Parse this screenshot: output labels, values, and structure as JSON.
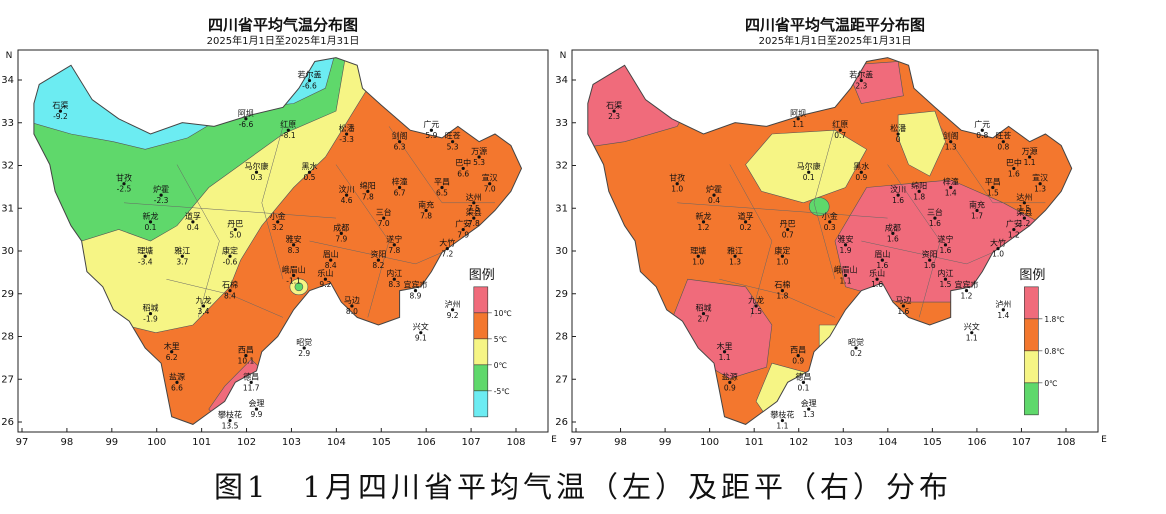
{
  "panels": [
    {
      "id": "temp",
      "title": "四川省平均气温分布图",
      "subtitle": "2025年1月1日至2025年1月31日",
      "y_ticks": [
        "34",
        "33",
        "32",
        "31",
        "30",
        "29",
        "28",
        "27",
        "26"
      ],
      "x_ticks": [
        "97",
        "98",
        "99",
        "100",
        "101",
        "102",
        "103",
        "104",
        "105",
        "106",
        "107",
        "108"
      ],
      "north_label": "N",
      "east_label": "E",
      "legend": {
        "title": "图例",
        "breaks": [
          "10℃",
          "5℃",
          "0℃",
          "-5℃"
        ],
        "colors": [
          "#f06b7b",
          "#f3772e",
          "#f6f585",
          "#5fd86b",
          "#6cecf2"
        ]
      },
      "stations": [
        {
          "name": "石渠",
          "value": "-9.2"
        },
        {
          "name": "若尔盖",
          "value": "-6.6"
        },
        {
          "name": "阿坝",
          "value": "-6.6"
        },
        {
          "name": "红原",
          "value": "-8.1"
        },
        {
          "name": "松潘",
          "value": "-3.3"
        },
        {
          "name": "甘孜",
          "value": "-2.5"
        },
        {
          "name": "炉霍",
          "value": "-2.3"
        },
        {
          "name": "马尔康",
          "value": "0.3"
        },
        {
          "name": "黑水",
          "value": "0.5"
        },
        {
          "name": "新龙",
          "value": "0.1"
        },
        {
          "name": "道孚",
          "value": "0.4"
        },
        {
          "name": "丹巴",
          "value": "5.0"
        },
        {
          "name": "小金",
          "value": "3.2"
        },
        {
          "name": "理塘",
          "value": "-3.4"
        },
        {
          "name": "雅江",
          "value": "3.7"
        },
        {
          "name": "康定",
          "value": "-0.6"
        },
        {
          "name": "稻城",
          "value": "-1.9"
        },
        {
          "name": "九龙",
          "value": "3.4"
        },
        {
          "name": "木里",
          "value": "6.2"
        },
        {
          "name": "盐源",
          "value": "6.6"
        },
        {
          "name": "西昌",
          "value": "10.1"
        },
        {
          "name": "德昌",
          "value": "11.7"
        },
        {
          "name": "会理",
          "value": "9.9"
        },
        {
          "name": "攀枝花",
          "value": "13.5"
        },
        {
          "name": "石棉",
          "value": "8.4"
        },
        {
          "name": "昭觉",
          "value": "2.9"
        },
        {
          "name": "雅安",
          "value": "8.3"
        },
        {
          "name": "乐山",
          "value": "9.2"
        },
        {
          "name": "宜宾市",
          "value": "8.9"
        },
        {
          "name": "泸州",
          "value": "9.2"
        },
        {
          "name": "兴文",
          "value": "9.1"
        },
        {
          "name": "马边",
          "value": "8.0"
        },
        {
          "name": "汶川",
          "value": "4.6"
        },
        {
          "name": "绵阳",
          "value": "7.8"
        },
        {
          "name": "成都",
          "value": "7.9"
        },
        {
          "name": "剑阁",
          "value": "6.3"
        },
        {
          "name": "广元",
          "value": "5.9"
        },
        {
          "name": "旺苍",
          "value": "5.3"
        },
        {
          "name": "巴中",
          "value": "6.6"
        },
        {
          "name": "万源",
          "value": "5.3"
        },
        {
          "name": "平昌",
          "value": "6.5"
        },
        {
          "name": "南充",
          "value": "7.8"
        },
        {
          "name": "达州",
          "value": "7.5"
        },
        {
          "name": "梓潼",
          "value": "6.7"
        },
        {
          "name": "遂宁",
          "value": "7.8"
        },
        {
          "name": "内江",
          "value": "8.3"
        },
        {
          "name": "广安",
          "value": "7.9"
        },
        {
          "name": "渠县",
          "value": "7.8"
        },
        {
          "name": "大竹",
          "value": "7.2"
        },
        {
          "name": "宣汉",
          "value": "7.0"
        },
        {
          "name": "三台",
          "value": "7.0"
        },
        {
          "name": "资阳",
          "value": "8.2"
        },
        {
          "name": "眉山",
          "value": "8.4"
        },
        {
          "name": "峨眉山",
          "value": "-1.1"
        }
      ]
    },
    {
      "id": "anom",
      "title": "四川省平均气温距平分布图",
      "subtitle": "2025年1月1日至2025年1月31日",
      "y_ticks": [
        "34",
        "33",
        "32",
        "31",
        "30",
        "29",
        "28",
        "27",
        "26"
      ],
      "x_ticks": [
        "97",
        "98",
        "99",
        "100",
        "101",
        "102",
        "103",
        "104",
        "105",
        "106",
        "107",
        "108"
      ],
      "north_label": "N",
      "east_label": "E",
      "legend": {
        "title": "图例",
        "breaks": [
          "1.8℃",
          "0.8℃",
          "0℃"
        ],
        "colors": [
          "#f06b7b",
          "#f3772e",
          "#f6f585",
          "#5fd86b"
        ]
      },
      "stations": [
        {
          "name": "石渠",
          "value": "2.3"
        },
        {
          "name": "若尔盖",
          "value": "2.3"
        },
        {
          "name": "阿坝",
          "value": "1.1"
        },
        {
          "name": "红原",
          "value": "0.7"
        },
        {
          "name": "松潘",
          "value": "0"
        },
        {
          "name": "甘孜",
          "value": "1.0"
        },
        {
          "name": "炉霍",
          "value": "0.4"
        },
        {
          "name": "马尔康",
          "value": "0.1"
        },
        {
          "name": "黑水",
          "value": "0.9"
        },
        {
          "name": "新龙",
          "value": "1.2"
        },
        {
          "name": "道孚",
          "value": "0.2"
        },
        {
          "name": "丹巴",
          "value": "0.7"
        },
        {
          "name": "小金",
          "value": "0.3"
        },
        {
          "name": "理塘",
          "value": "1.0"
        },
        {
          "name": "雅江",
          "value": "1.3"
        },
        {
          "name": "康定",
          "value": "1.0"
        },
        {
          "name": "稻城",
          "value": "2.7"
        },
        {
          "name": "九龙",
          "value": "1.5"
        },
        {
          "name": "木里",
          "value": "1.1"
        },
        {
          "name": "盐源",
          "value": "0.9"
        },
        {
          "name": "西昌",
          "value": "0.9"
        },
        {
          "name": "德昌",
          "value": "0.1"
        },
        {
          "name": "会理",
          "value": "1.3"
        },
        {
          "name": "攀枝花",
          "value": "1.1"
        },
        {
          "name": "石棉",
          "value": "1.8"
        },
        {
          "name": "昭觉",
          "value": "0.2"
        },
        {
          "name": "雅安",
          "value": "1.9"
        },
        {
          "name": "乐山",
          "value": "1.6"
        },
        {
          "name": "宜宾市",
          "value": "1.2"
        },
        {
          "name": "泸州",
          "value": "1.4"
        },
        {
          "name": "兴文",
          "value": "1.1"
        },
        {
          "name": "马边",
          "value": "1.6"
        },
        {
          "name": "汶川",
          "value": "1.6"
        },
        {
          "name": "绵阳",
          "value": "1.8"
        },
        {
          "name": "成都",
          "value": "1.6"
        },
        {
          "name": "剑阁",
          "value": "1.3"
        },
        {
          "name": "广元",
          "value": "0.8"
        },
        {
          "name": "旺苍",
          "value": "0.8"
        },
        {
          "name": "巴中",
          "value": "1.6"
        },
        {
          "name": "万源",
          "value": "1.1"
        },
        {
          "name": "平昌",
          "value": "1.5"
        },
        {
          "name": "南充",
          "value": "1.7"
        },
        {
          "name": "达州",
          "value": "1.5"
        },
        {
          "name": "梓潼",
          "value": "1.4"
        },
        {
          "name": "遂宁",
          "value": "1.6"
        },
        {
          "name": "内江",
          "value": "1.5"
        },
        {
          "name": "广安",
          "value": "1.2"
        },
        {
          "name": "渠县",
          "value": "1.2"
        },
        {
          "name": "大竹",
          "value": "1.0"
        },
        {
          "name": "宣汉",
          "value": "1.3"
        },
        {
          "name": "三台",
          "value": "1.6"
        },
        {
          "name": "资阳",
          "value": "1.6"
        },
        {
          "name": "眉山",
          "value": "1.6"
        },
        {
          "name": "峨眉山",
          "value": "1.1"
        }
      ]
    }
  ],
  "caption": "图1　1月四川省平均气温（左）及距平（右）分布"
}
